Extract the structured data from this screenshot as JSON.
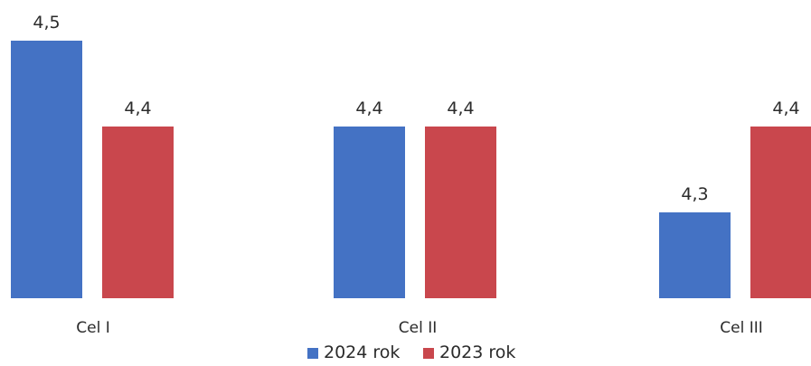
{
  "chart_data": {
    "type": "bar",
    "categories": [
      "Cel  I",
      "Cel II",
      "Cel III"
    ],
    "series": [
      {
        "name": "2024 rok",
        "values": [
          4.5,
          4.4,
          4.3
        ],
        "labels": [
          "4,5",
          "4,4",
          "4,3"
        ],
        "color": "#4472c4"
      },
      {
        "name": "2023 rok",
        "values": [
          4.4,
          4.4,
          4.4
        ],
        "labels": [
          "4,4",
          "4,4",
          "4,4"
        ],
        "color": "#c9474d"
      }
    ],
    "grid": false,
    "legend_position": "bottom"
  }
}
